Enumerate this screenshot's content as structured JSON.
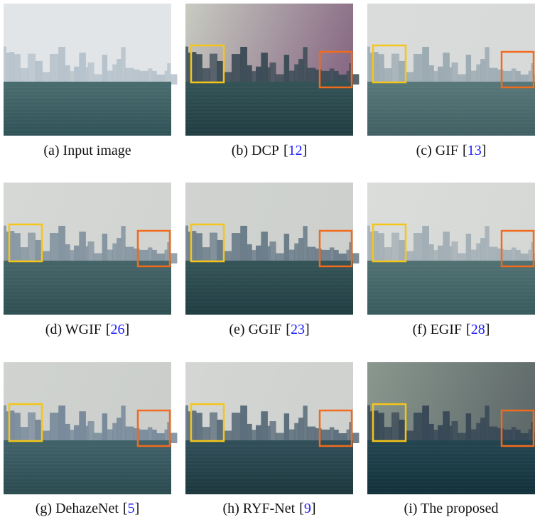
{
  "figure": {
    "panels": [
      {
        "caption": "(a) Input image"
      },
      {
        "caption": "(b) DCP",
        "cite": [
          "[",
          "12",
          "]"
        ]
      },
      {
        "caption": "(c) GIF",
        "cite": [
          "[",
          "13",
          "]"
        ]
      },
      {
        "caption": "(d) WGIF",
        "cite": [
          "[",
          "26",
          "]"
        ]
      },
      {
        "caption": "(e) GGIF",
        "cite": [
          "[",
          "23",
          "]"
        ]
      },
      {
        "caption": "(f) EGIF",
        "cite": [
          "[",
          "28",
          "]"
        ]
      },
      {
        "caption": "(g) DehazeNet",
        "cite": [
          "[",
          "5",
          "]"
        ]
      },
      {
        "caption": "(h) RYF-Net",
        "cite": [
          "[",
          "9",
          "]"
        ]
      },
      {
        "caption": "(i) The proposed"
      }
    ]
  }
}
